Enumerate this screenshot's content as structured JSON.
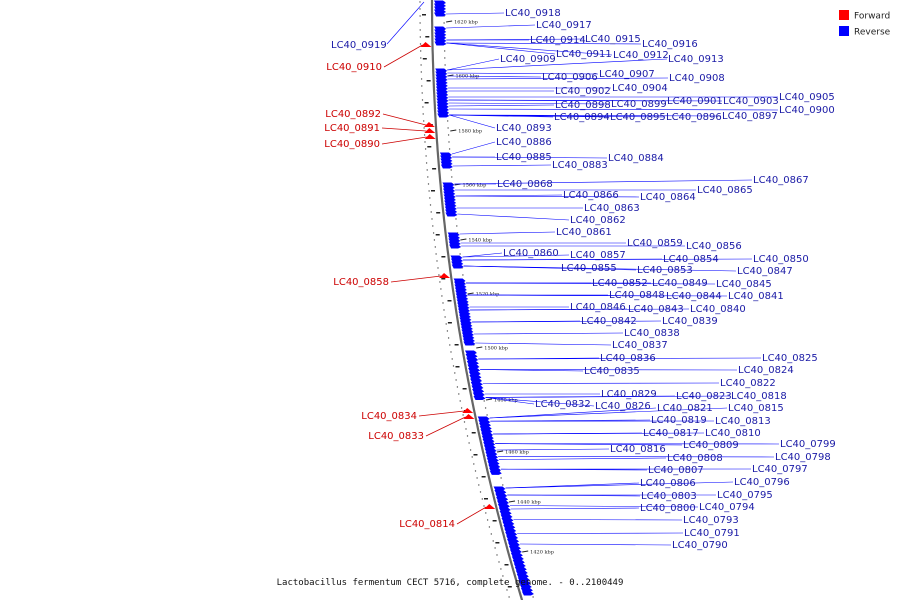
{
  "colors": {
    "forward": "#ff0000",
    "reverse": "#0000ff",
    "label_forward": "#cc0000",
    "label_reverse": "#1a1aa6",
    "backbone": "#666666"
  },
  "legend": [
    {
      "key": "forward",
      "label": "Forward",
      "color": "#ff0000"
    },
    {
      "key": "reverse",
      "label": "Reverse",
      "color": "#0000ff"
    }
  ],
  "caption": "Lactobacillus fermentum CECT 5716, complete genome. - 0..2100449",
  "ticks": [
    "1620 kbp",
    "1600 kbp",
    "1580 kbp",
    "1560 kbp",
    "1540 kbp",
    "1520 kbp",
    "1500 kbp",
    "1480 kbp",
    "1460 kbp",
    "1440 kbp",
    "1420 kbp"
  ],
  "forward_genes": [
    "LC40_0910",
    "LC40_0892",
    "LC40_0891",
    "LC40_0890",
    "LC40_0858",
    "LC40_0834",
    "LC40_0833",
    "LC40_0814"
  ],
  "reverse_genes": [
    "LC40_0919",
    "LC40_0918",
    "LC40_0917",
    "LC40_0916",
    "LC40_0915",
    "LC40_0914",
    "LC40_0913",
    "LC40_0912",
    "LC40_0911",
    "LC40_0909",
    "LC40_0908",
    "LC40_0907",
    "LC40_0906",
    "LC40_0905",
    "LC40_0904",
    "LC40_0903",
    "LC40_0902",
    "LC40_0901",
    "LC40_0900",
    "LC40_0899",
    "LC40_0898",
    "LC40_0897",
    "LC40_0896",
    "LC40_0895",
    "LC40_0894",
    "LC40_0893",
    "LC40_0886",
    "LC40_0885",
    "LC40_0884",
    "LC40_0883",
    "LC40_0868",
    "LC40_0867",
    "LC40_0866",
    "LC40_0865",
    "LC40_0864",
    "LC40_0863",
    "LC40_0862",
    "LC40_0861",
    "LC40_0860",
    "LC40_0859",
    "LC40_0857",
    "LC40_0856",
    "LC40_0855",
    "LC40_0854",
    "LC40_0853",
    "LC40_0852",
    "LC40_0850",
    "LC40_0849",
    "LC40_0848",
    "LC40_0847",
    "LC40_0846",
    "LC40_0845",
    "LC40_0844",
    "LC40_0843",
    "LC40_0842",
    "LC40_0841",
    "LC40_0840",
    "LC40_0839",
    "LC40_0838",
    "LC40_0837",
    "LC40_0836",
    "LC40_0835",
    "LC40_0832",
    "LC40_0829",
    "LC40_0826",
    "LC40_0825",
    "LC40_0824",
    "LC40_0823",
    "LC40_0822",
    "LC40_0821",
    "LC40_0819",
    "LC40_0818",
    "LC40_0817",
    "LC40_0816",
    "LC40_0815",
    "LC40_0813",
    "LC40_0810",
    "LC40_0809",
    "LC40_0808",
    "LC40_0807",
    "LC40_0806",
    "LC40_0803",
    "LC40_0800",
    "LC40_0799",
    "LC40_0798",
    "LC40_0797",
    "LC40_0796",
    "LC40_0795",
    "LC40_0794",
    "LC40_0793",
    "LC40_0791",
    "LC40_0790"
  ]
}
